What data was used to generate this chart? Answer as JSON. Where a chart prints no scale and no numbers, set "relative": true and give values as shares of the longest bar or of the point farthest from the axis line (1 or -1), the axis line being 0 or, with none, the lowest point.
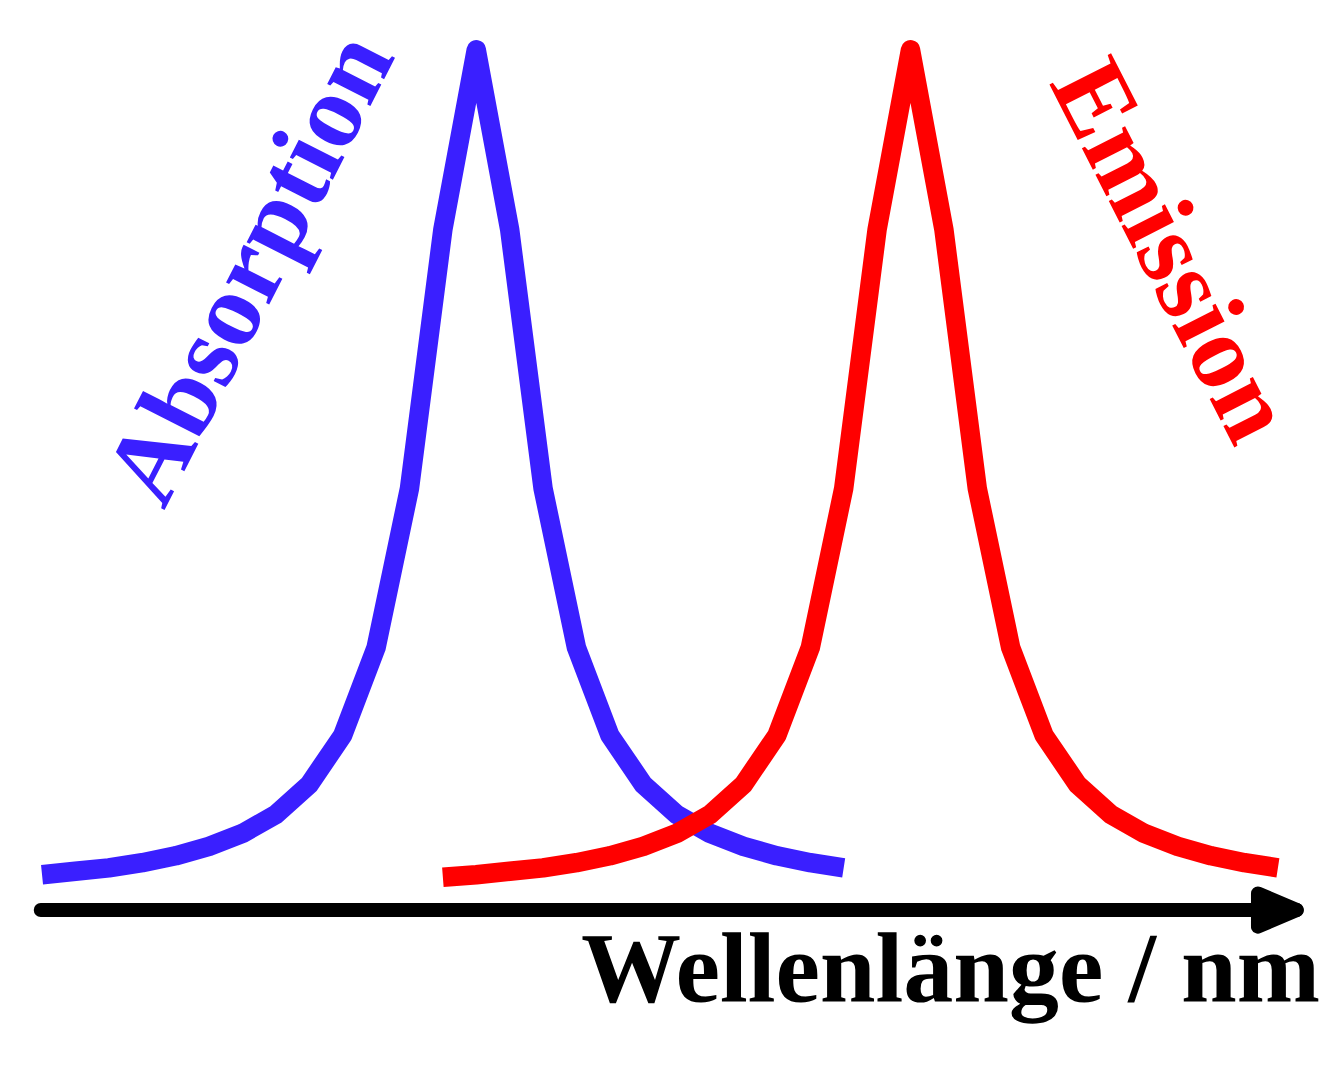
{
  "chart_data": {
    "type": "line",
    "relative": true,
    "xlabel": "Wellenlänge / nm",
    "legend": false,
    "grid": false,
    "marker": "none",
    "line_style": "solid",
    "tick_labels": false,
    "categories": [
      null,
      null,
      null,
      null,
      null,
      null,
      null,
      null,
      null,
      null,
      null,
      null,
      null,
      null,
      null,
      null,
      null,
      null,
      null,
      null,
      null,
      null,
      null,
      null,
      null,
      null,
      null,
      null,
      null,
      null,
      null,
      null,
      null,
      null,
      null,
      null,
      null,
      null
    ],
    "series": [
      {
        "name": "Absorption",
        "color": "#3a1fff",
        "values": [
          0.041,
          0.045,
          0.049,
          0.055,
          0.063,
          0.074,
          0.089,
          0.111,
          0.146,
          0.203,
          0.305,
          0.49,
          0.791,
          1,
          0.791,
          0.49,
          0.305,
          0.203,
          0.146,
          0.111,
          0.089,
          0.074,
          0.063,
          0.055,
          0.049,
          null,
          null,
          null,
          null,
          null,
          null,
          null,
          null,
          null,
          null,
          null,
          null,
          null
        ]
      },
      {
        "name": "Emission",
        "color": "#ff0000",
        "values": [
          null,
          null,
          null,
          null,
          null,
          null,
          null,
          null,
          null,
          null,
          null,
          null,
          0.038,
          0.041,
          0.045,
          0.049,
          0.055,
          0.063,
          0.074,
          0.089,
          0.111,
          0.146,
          0.203,
          0.305,
          0.49,
          0.791,
          1,
          0.791,
          0.49,
          0.305,
          0.203,
          0.146,
          0.111,
          0.089,
          0.074,
          0.063,
          0.055,
          0.049
        ]
      }
    ]
  }
}
